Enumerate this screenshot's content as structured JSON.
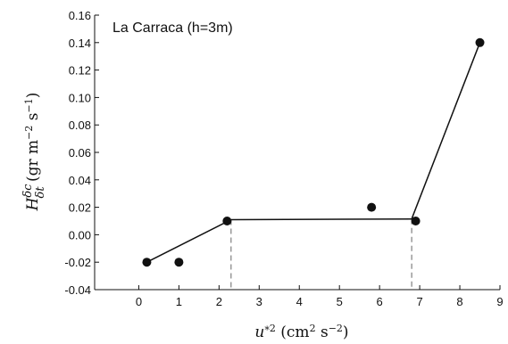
{
  "chart_data": {
    "type": "scatter",
    "title": "",
    "annotation": "La Carraca (h=3m)",
    "xlabel": "u*² (cm² s⁻²)",
    "ylabel": "H δc/δt (gr m⁻² s⁻¹)",
    "xlim": [
      -1.1,
      9
    ],
    "ylim": [
      -0.04,
      0.16
    ],
    "x_ticks": [
      0,
      1,
      2,
      3,
      4,
      5,
      6,
      7,
      8,
      9
    ],
    "y_ticks": [
      -0.04,
      -0.02,
      0.0,
      0.02,
      0.04,
      0.06,
      0.08,
      0.1,
      0.12,
      0.14,
      0.16
    ],
    "x_tick_labels": [
      "0",
      "1",
      "2",
      "3",
      "4",
      "5",
      "6",
      "7",
      "8",
      "9"
    ],
    "y_tick_labels": [
      "-0.04",
      "-0.02",
      "0.00",
      "0.02",
      "0.04",
      "0.06",
      "0.08",
      "0.10",
      "0.12",
      "0.14",
      "0.16"
    ],
    "points": [
      {
        "x": 0.2,
        "y": -0.02
      },
      {
        "x": 1.0,
        "y": -0.02
      },
      {
        "x": 2.2,
        "y": 0.01
      },
      {
        "x": 5.8,
        "y": 0.02
      },
      {
        "x": 6.9,
        "y": 0.01
      },
      {
        "x": 8.5,
        "y": 0.14
      }
    ],
    "fit_segments": [
      {
        "x": [
          0.2,
          2.3
        ],
        "y": [
          -0.02,
          0.011
        ]
      },
      {
        "x": [
          2.3,
          6.8
        ],
        "y": [
          0.011,
          0.0115
        ]
      },
      {
        "x": [
          6.8,
          8.5
        ],
        "y": [
          0.0115,
          0.14
        ]
      }
    ],
    "breakpoints": [
      {
        "x": 2.3,
        "y": 0.011
      },
      {
        "x": 6.8,
        "y": 0.0115
      }
    ],
    "grid": false,
    "colors": {
      "marks": "#111111",
      "dashes": "#666666"
    }
  }
}
